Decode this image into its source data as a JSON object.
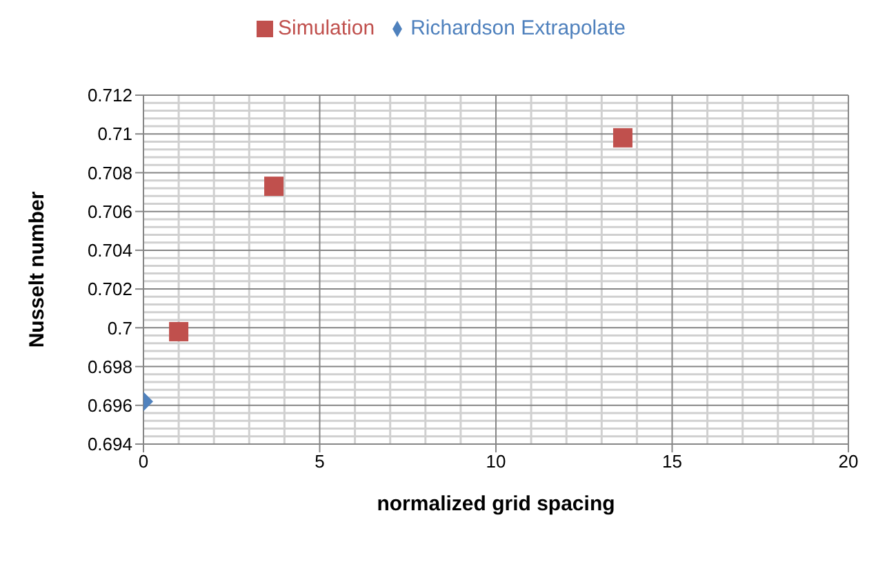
{
  "chart_data": {
    "type": "scatter",
    "xlabel": "normalized grid spacing",
    "ylabel": "Nusselt number",
    "series": [
      {
        "name": "Simulation",
        "color": "#c0504d",
        "marker": "square",
        "x": [
          1,
          3.7,
          13.6
        ],
        "values": [
          0.6998,
          0.7073,
          0.7098
        ]
      },
      {
        "name": "Richardson Extrapolate",
        "color": "#4f81bd",
        "marker": "diamond",
        "x": [
          0
        ],
        "values": [
          0.6962
        ]
      }
    ],
    "xlim": [
      0,
      20
    ],
    "xticks": [
      0,
      5,
      10,
      15,
      20
    ],
    "ylim": [
      0.694,
      0.712
    ],
    "yticks": [
      0.694,
      0.696,
      0.698,
      0.7,
      0.702,
      0.704,
      0.706,
      0.708,
      0.71,
      0.712
    ],
    "grid": true,
    "legend": "top"
  }
}
